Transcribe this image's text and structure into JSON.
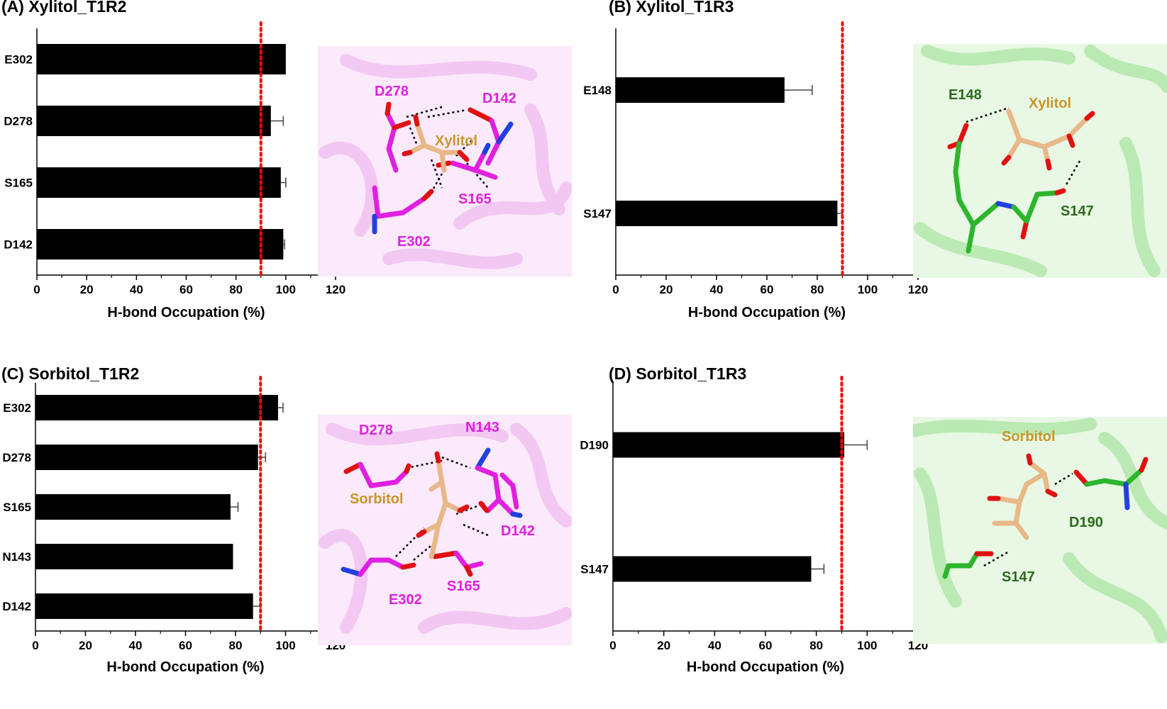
{
  "colors": {
    "bar": "#000000",
    "threshold_line": "#ff0000",
    "t1r2_residue": "#e020e0",
    "t1r2_ribbon": "#f2c4f2",
    "t1r2_bg": "#fbeafb",
    "t1r3_residue": "#2db52d",
    "t1r3_label": "#2e6a1e",
    "t1r3_ribbon": "#b6e8ae",
    "t1r3_bg": "#e8f8e4",
    "ligand": "#e8b888",
    "ligand_label": "#c8962a",
    "oxygen": "#e01010",
    "nitrogen": "#2040e0"
  },
  "chart_data": [
    {
      "id": "A",
      "type": "bar",
      "orientation": "horizontal",
      "title": "(A) Xylitol_T1R2",
      "categories": [
        "E302",
        "D278",
        "S165",
        "D142"
      ],
      "values": [
        100,
        94,
        98,
        99
      ],
      "errors": [
        0,
        5,
        2,
        0.5
      ],
      "xlabel": "H-bond Occupation (%)",
      "xlim": [
        0,
        120
      ],
      "xticks": [
        0,
        20,
        40,
        60,
        80,
        100,
        120
      ],
      "threshold": 90,
      "grid": false
    },
    {
      "id": "B",
      "type": "bar",
      "orientation": "horizontal",
      "title": "(B) Xylitol_T1R3",
      "categories": [
        "E148",
        "S147"
      ],
      "values": [
        67,
        88
      ],
      "errors": [
        11,
        2
      ],
      "xlabel": "H-bond Occupation (%)",
      "xlim": [
        0,
        120
      ],
      "xticks": [
        0,
        20,
        40,
        60,
        80,
        100,
        120
      ],
      "threshold": 90,
      "grid": false
    },
    {
      "id": "C",
      "type": "bar",
      "orientation": "horizontal",
      "title": "(C) Sorbitol_T1R2",
      "categories": [
        "E302",
        "D278",
        "S165",
        "N143",
        "D142"
      ],
      "values": [
        97,
        89,
        78,
        79,
        87
      ],
      "errors": [
        2,
        3,
        3,
        0,
        3
      ],
      "xlabel": "H-bond Occupation (%)",
      "xlim": [
        0,
        120
      ],
      "xticks": [
        0,
        20,
        40,
        60,
        80,
        100,
        120
      ],
      "threshold": 90,
      "grid": false
    },
    {
      "id": "D",
      "type": "bar",
      "orientation": "horizontal",
      "title": "(D) Sorbitol_T1R3",
      "categories": [
        "D190",
        "S147"
      ],
      "values": [
        91,
        78
      ],
      "errors": [
        9,
        5
      ],
      "xlabel": "H-bond Occupation (%)",
      "xlim": [
        0,
        120
      ],
      "xticks": [
        0,
        20,
        40,
        60,
        80,
        100,
        120
      ],
      "threshold": 90,
      "grid": false
    }
  ],
  "structures": {
    "A": {
      "ligand": "Xylitol",
      "residues": [
        "D278",
        "D142",
        "S165",
        "E302"
      ]
    },
    "B": {
      "ligand": "Xylitol",
      "residues": [
        "E148",
        "S147"
      ]
    },
    "C": {
      "ligand": "Sorbitol",
      "residues": [
        "D278",
        "N143",
        "D142",
        "S165",
        "E302"
      ]
    },
    "D": {
      "ligand": "Sorbitol",
      "residues": [
        "D190",
        "S147"
      ]
    }
  }
}
